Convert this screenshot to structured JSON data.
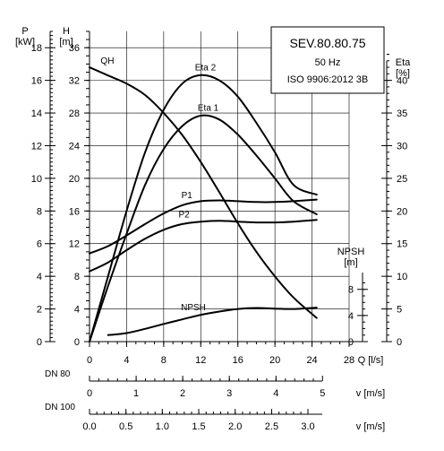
{
  "chart_data": {
    "type": "line",
    "title_box": {
      "model": "SEV.80.80.75",
      "frequency": "50 Hz",
      "standard": "ISO 9906:2012 3B"
    },
    "xlabel": "Q [l/s]",
    "xlim": [
      0,
      28
    ],
    "xticks": [
      "0",
      "4",
      "8",
      "12",
      "16",
      "20",
      "24",
      "28"
    ],
    "axes": {
      "P": {
        "label": "P",
        "unit": "[kW]",
        "ticks": [
          "0",
          "2",
          "4",
          "6",
          "8",
          "10",
          "12",
          "14",
          "16",
          "18"
        ],
        "lim": [
          0,
          19
        ]
      },
      "H": {
        "label": "H",
        "unit": "[m]",
        "ticks": [
          "0",
          "4",
          "8",
          "12",
          "16",
          "20",
          "24",
          "28",
          "32",
          "36"
        ],
        "lim": [
          0,
          38
        ]
      },
      "Eta": {
        "label": "Eta",
        "unit": "[%]",
        "ticks": [
          "0",
          "5",
          "10",
          "15",
          "20",
          "25",
          "30",
          "35",
          "40"
        ],
        "lim": [
          0,
          45
        ]
      },
      "NPSH": {
        "label": "NPSH",
        "unit": "[m]",
        "ticks": [
          "0",
          "4",
          "8"
        ]
      }
    },
    "series": [
      {
        "name": "QH",
        "axis": "H",
        "x": [
          0,
          2,
          4,
          6,
          8,
          10,
          12,
          14,
          16,
          18,
          20,
          22,
          24.5
        ],
        "y": [
          33.6,
          32.6,
          31.6,
          30.2,
          28,
          25.3,
          22,
          18.3,
          14.5,
          11,
          8,
          5.4,
          2.9
        ]
      },
      {
        "name": "Eta 2",
        "axis": "Eta",
        "x": [
          0,
          2,
          4,
          6,
          8,
          10,
          12,
          14,
          16,
          18,
          20,
          22,
          24.5
        ],
        "y": [
          0,
          10,
          20,
          29,
          35.5,
          39.5,
          40.8,
          40,
          37.5,
          33.5,
          29,
          24,
          22.5
        ]
      },
      {
        "name": "Eta 1",
        "axis": "Eta",
        "x": [
          0,
          2,
          4,
          6,
          8,
          10,
          12,
          14,
          16,
          18,
          20,
          22,
          24.5
        ],
        "y": [
          0,
          8.5,
          16.5,
          24,
          29.5,
          33,
          34.6,
          34,
          31.7,
          28.5,
          25,
          21.5,
          19.5
        ]
      },
      {
        "name": "P1",
        "axis": "P",
        "x": [
          0,
          2,
          4,
          6,
          8,
          10,
          12,
          14,
          16,
          18,
          20,
          22,
          24.5
        ],
        "y": [
          5.4,
          5.85,
          6.5,
          7.2,
          7.85,
          8.35,
          8.6,
          8.65,
          8.6,
          8.55,
          8.55,
          8.6,
          8.7
        ]
      },
      {
        "name": "P2",
        "axis": "P",
        "x": [
          0,
          2,
          4,
          6,
          8,
          10,
          12,
          14,
          16,
          18,
          20,
          22,
          24.5
        ],
        "y": [
          4.3,
          4.85,
          5.6,
          6.3,
          6.85,
          7.2,
          7.35,
          7.4,
          7.35,
          7.3,
          7.3,
          7.35,
          7.45
        ]
      },
      {
        "name": "NPSH",
        "axis": "NPSH",
        "x": [
          2,
          4,
          6,
          8,
          10,
          12,
          14,
          16,
          18,
          20,
          22,
          24.5
        ],
        "y": [
          1.0,
          1.3,
          1.95,
          2.7,
          3.4,
          4.1,
          4.6,
          5.0,
          5.15,
          5.05,
          5.0,
          5.2
        ]
      }
    ],
    "secondary_x": [
      {
        "label": "DN 80",
        "unit": "v [m/s]",
        "ticks": [
          "0",
          "1",
          "2",
          "3",
          "4",
          "5"
        ],
        "ticks_q": [
          0,
          5.03,
          10.05,
          15.08,
          20.11,
          25.13
        ]
      },
      {
        "label": "DN 100",
        "unit": "v [m/s]",
        "ticks": [
          "0.0",
          "0.5",
          "1.0",
          "1.5",
          "2.0",
          "2.5",
          "3.0"
        ],
        "ticks_q": [
          0,
          3.93,
          7.85,
          11.78,
          15.71,
          19.64,
          23.56
        ]
      }
    ],
    "grid": true
  }
}
